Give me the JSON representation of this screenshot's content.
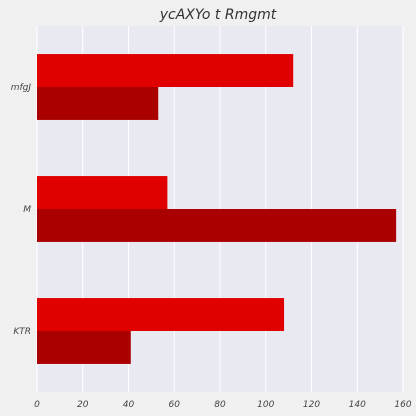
{
  "chart_data": {
    "type": "bar",
    "orientation": "horizontal",
    "title": "ycAXYo t Rmgmt",
    "xlabel": "",
    "ylabel": "",
    "categories": [
      "mfgJ",
      "M",
      "KTR"
    ],
    "series": [
      {
        "color": "#e00000",
        "values": [
          112,
          57,
          108
        ]
      },
      {
        "color": "#aa0000",
        "values": [
          53,
          157,
          41
        ]
      }
    ],
    "xlim": [
      0,
      160
    ],
    "xticks": [
      0,
      20,
      40,
      60,
      80,
      100,
      120,
      140,
      160
    ],
    "grid": true,
    "legend": "none"
  },
  "colors": {
    "plot_background": "#e9e9f2",
    "figure_background": "#f0f0f0",
    "grid": "#ffffff"
  }
}
